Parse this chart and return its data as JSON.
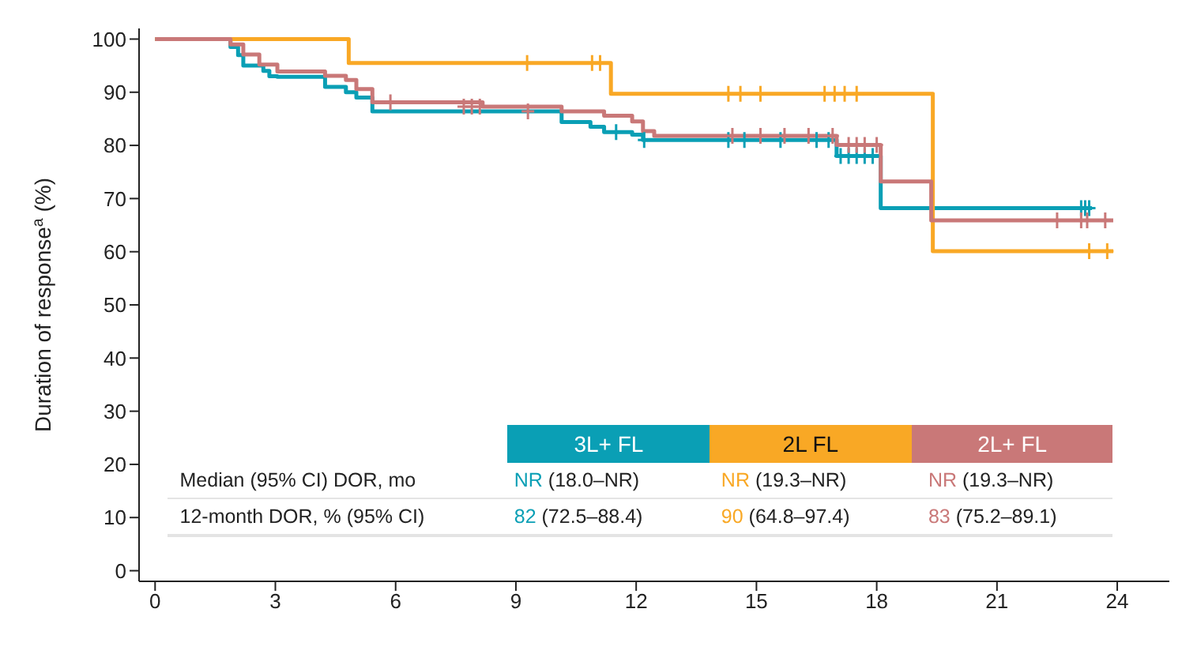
{
  "chart_data": {
    "type": "step",
    "ylabel": "Duration of response$^{a}$ (%)",
    "xlim": [
      -0.4,
      25.3
    ],
    "xticks": [
      0,
      3,
      6,
      9,
      12,
      15,
      18,
      21,
      24
    ],
    "ylim": [
      -2,
      102
    ],
    "yticks": [
      0,
      10,
      20,
      30,
      40,
      50,
      60,
      70,
      80,
      90,
      100
    ],
    "grid": false,
    "legend": "bottom right",
    "line_style": "solid",
    "series": [
      {
        "name": "3L+ FL",
        "color": "#0a9fb5",
        "x": [
          0,
          1.88,
          2.07,
          2.2,
          2.7,
          2.85,
          3.05,
          4.24,
          4.76,
          5.02,
          5.42,
          10.14,
          10.86,
          11.2,
          11.9,
          12.17,
          17.0,
          18.1,
          23.37
        ],
        "values": [
          100,
          98.5,
          97,
          95,
          94,
          93,
          92.9,
          91,
          90,
          89,
          86.4,
          84.4,
          83.5,
          82.5,
          82,
          81,
          78,
          68.2,
          68.2
        ]
      },
      {
        "name": "2L FL",
        "color": "#f9a825",
        "x": [
          0,
          4.83,
          11.37,
          19.4,
          23.9
        ],
        "values": [
          100,
          95.5,
          89.7,
          60.1,
          60.1
        ]
      },
      {
        "name": "2L+ FL",
        "color": "#c97878",
        "x": [
          0,
          1.88,
          2.2,
          2.6,
          3.05,
          4.24,
          4.76,
          5.02,
          5.42,
          8.17,
          10.14,
          11.2,
          11.9,
          12.17,
          12.45,
          17.0,
          18.1,
          19.36,
          23.9
        ],
        "values": [
          100,
          99,
          97.1,
          95.2,
          93.9,
          93.1,
          92.3,
          90.6,
          88.1,
          87.3,
          86.4,
          85.6,
          84.5,
          82.7,
          81.8,
          80.1,
          73.2,
          65.9,
          65.9
        ]
      },
      {
        "type": "scatter",
        "marker": "cross",
        "color": "#0a9fb5",
        "x": [
          11.5,
          12.2,
          14.3,
          14.7,
          15.6,
          16.5,
          16.8,
          17.1,
          17.3,
          17.5,
          17.7,
          17.9,
          23.1,
          23.2,
          23.3
        ],
        "values": [
          82.5,
          81,
          81,
          81,
          81,
          81,
          81,
          78,
          78,
          78,
          78,
          78,
          68.2,
          68.2,
          68.2
        ]
      },
      {
        "type": "scatter",
        "marker": "cross",
        "color": "#f9a825",
        "x": [
          9.28,
          10.9,
          11.1,
          14.3,
          14.6,
          15.1,
          16.7,
          16.95,
          17.2,
          17.5,
          23.3,
          23.75
        ],
        "values": [
          95.5,
          95.5,
          95.5,
          89.7,
          89.7,
          89.7,
          89.7,
          89.7,
          89.7,
          89.7,
          60.1,
          60.1
        ]
      },
      {
        "type": "scatter",
        "marker": "cross",
        "color": "#c97878",
        "x": [
          5.87,
          7.7,
          7.9,
          8.1,
          9.3,
          14.4,
          15.1,
          15.7,
          16.3,
          16.9,
          17.3,
          17.5,
          17.7,
          18.0,
          22.5,
          23.1,
          23.25,
          23.7
        ],
        "values": [
          88.1,
          87.3,
          87.3,
          87.3,
          86.4,
          81.8,
          81.8,
          81.8,
          81.8,
          81.8,
          80.1,
          80.1,
          80.1,
          80.1,
          65.9,
          65.9,
          65.9,
          65.9
        ]
      }
    ],
    "annotations": [
      "Median (95% CI) DOR, mo",
      "NR (18.0–NR)",
      "NR (19.3–NR)",
      "NR (19.3–NR)",
      "12-month DOR, % (95% CI)",
      "82 (72.5–88.4)",
      "90 (64.8–97.4)",
      "83 (75.2–89.1)"
    ]
  }
}
